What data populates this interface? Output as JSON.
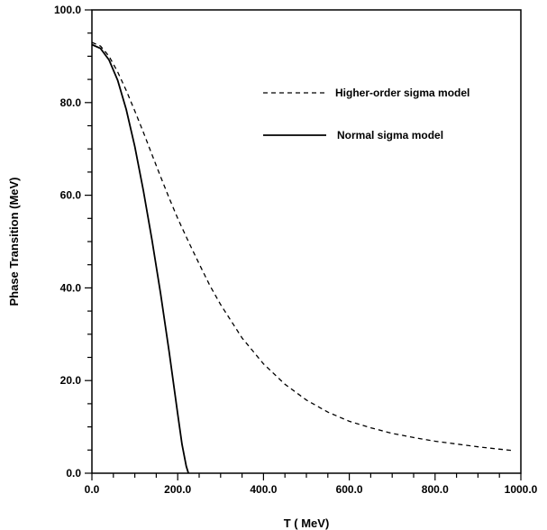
{
  "chart_data": {
    "type": "line",
    "title": "",
    "xlabel": "T ( MeV)",
    "ylabel": "Phase Transition (MeV)",
    "xlim": [
      0,
      1000
    ],
    "ylim": [
      0,
      100
    ],
    "xticks": [
      0,
      200,
      400,
      600,
      800,
      1000
    ],
    "yticks": [
      0,
      20,
      40,
      60,
      80,
      100
    ],
    "xtick_labels": [
      "0.0",
      "200.0",
      "400.0",
      "600.0",
      "800.0",
      "1000.0"
    ],
    "ytick_labels": [
      "0.0",
      "20.0",
      "40.0",
      "60.0",
      "80.0",
      "100.0"
    ],
    "minor_tick_step": 50,
    "grid": false,
    "legend_position": "top-right",
    "series": [
      {
        "name": "Higher-order sigma model",
        "style": "dashed",
        "color": "#000000",
        "x": [
          0,
          20,
          40,
          60,
          80,
          100,
          120,
          140,
          160,
          180,
          200,
          225,
          250,
          275,
          300,
          350,
          400,
          450,
          500,
          550,
          600,
          650,
          700,
          750,
          800,
          850,
          900,
          950,
          980
        ],
        "y": [
          93.0,
          92.2,
          90.0,
          86.6,
          82.6,
          78.2,
          73.6,
          68.8,
          64.0,
          59.4,
          55.0,
          50.0,
          45.2,
          40.5,
          36.4,
          29.2,
          23.6,
          19.2,
          15.8,
          13.2,
          11.2,
          9.8,
          8.6,
          7.7,
          6.9,
          6.3,
          5.7,
          5.2,
          4.9
        ]
      },
      {
        "name": "Normal sigma model",
        "style": "solid",
        "color": "#000000",
        "x": [
          0,
          20,
          40,
          60,
          80,
          100,
          120,
          140,
          160,
          180,
          200,
          210,
          220,
          225
        ],
        "y": [
          92.5,
          91.7,
          89.2,
          84.8,
          78.5,
          70.5,
          61.0,
          50.4,
          38.8,
          26.2,
          12.8,
          6.2,
          1.5,
          0
        ]
      }
    ]
  }
}
